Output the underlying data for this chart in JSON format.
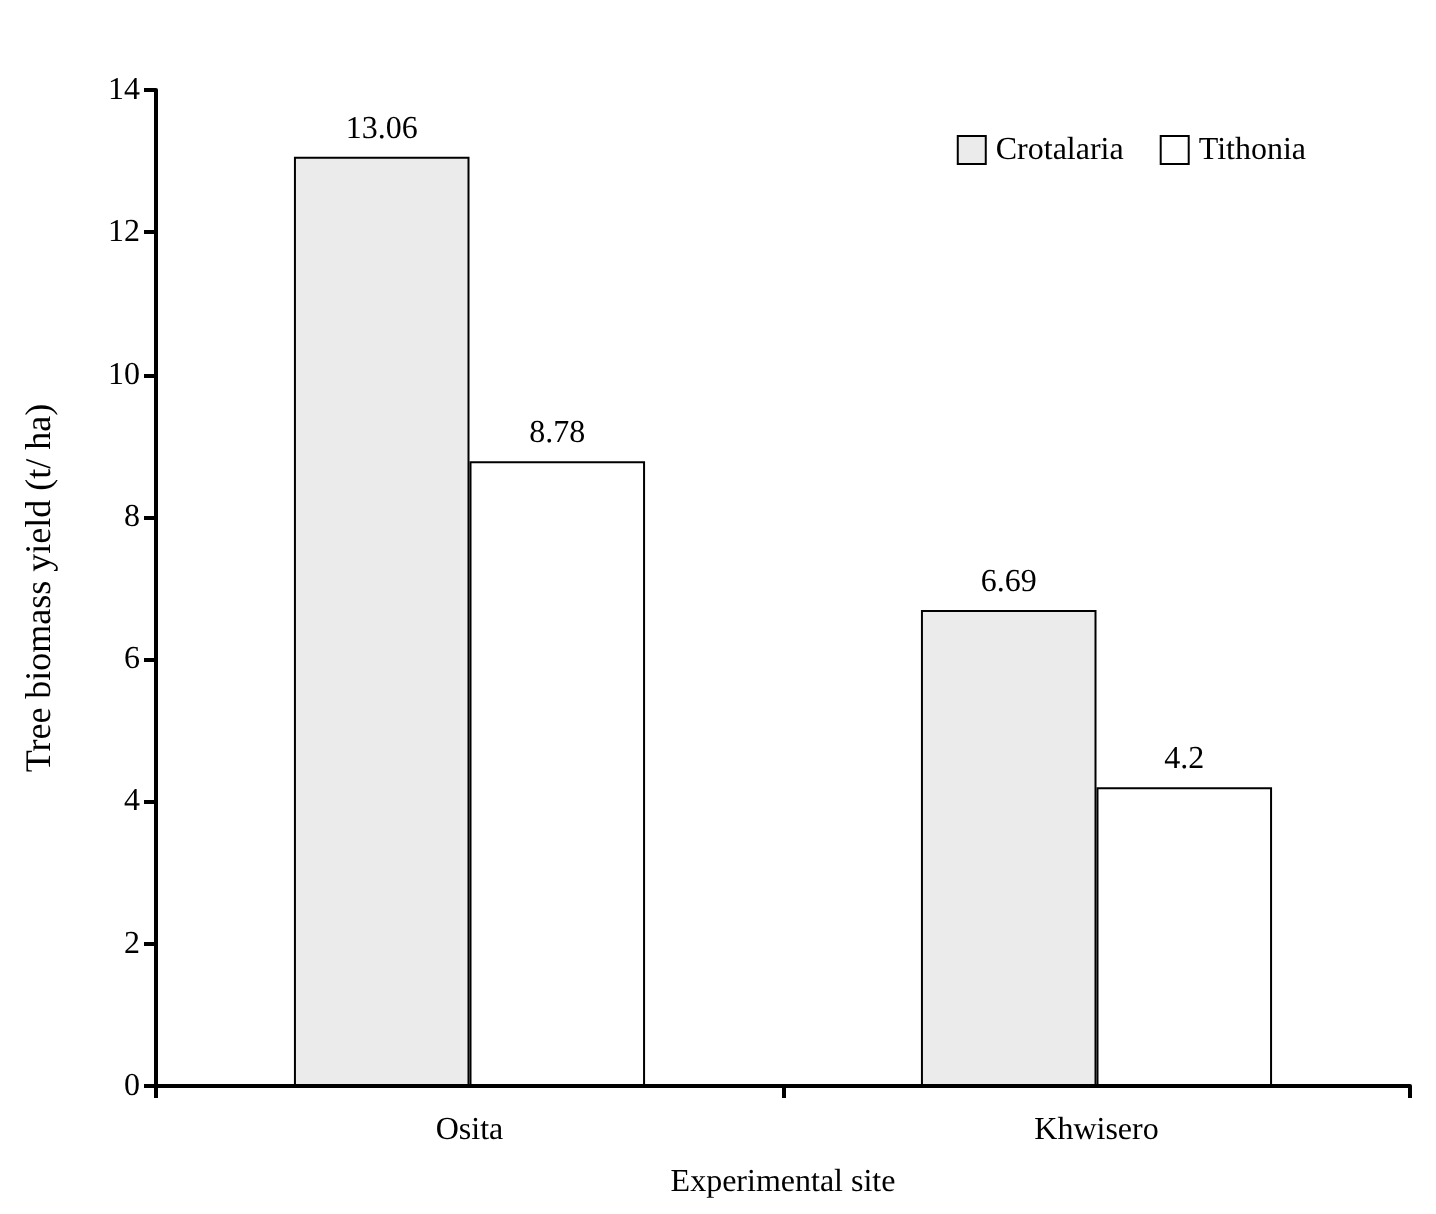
{
  "chart_data": {
    "type": "bar",
    "xlabel": "Experimental site",
    "ylabel": "Tree biomass yield (t/ ha)",
    "categories": [
      "Osita",
      "Khwisero"
    ],
    "series": [
      {
        "name": "Crotalaria",
        "color": "#ebebeb",
        "values": [
          13.06,
          6.69
        ]
      },
      {
        "name": "Tithonia",
        "color": "#ffffff",
        "values": [
          8.78,
          4.2
        ]
      }
    ],
    "ylim": [
      0,
      14
    ],
    "yticks": [
      0,
      2,
      4,
      6,
      8,
      10,
      12,
      14
    ],
    "data_labels": true,
    "grid": false,
    "legend": "top right"
  }
}
